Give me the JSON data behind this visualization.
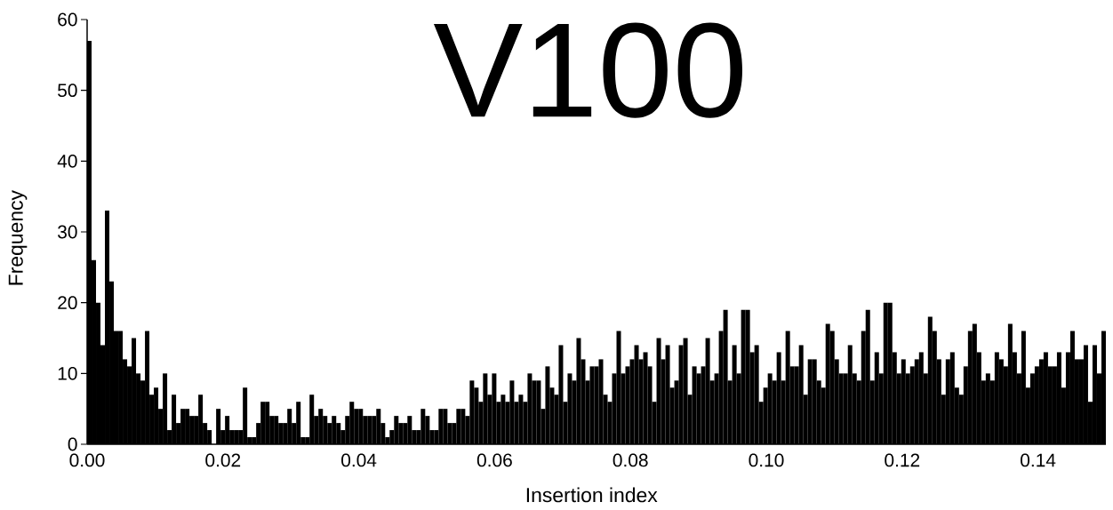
{
  "chart_data": {
    "type": "histogram",
    "title": "V100",
    "xlabel": "Insertion index",
    "ylabel": "Frequency",
    "color": "#000000",
    "bins": [
      0,
      0.000655,
      0.00131,
      0.001965,
      0.00262,
      0.003275,
      0.00393,
      0.004585,
      0.00524,
      0.005895,
      0.00655,
      0.007205,
      0.00786,
      0.008515,
      0.00917,
      0.009825,
      0.01048,
      0.011135,
      0.01179,
      0.012445,
      0.0131,
      0.013755,
      0.01441,
      0.015065,
      0.01572,
      0.016375,
      0.01703,
      0.017685,
      0.01834,
      0.018995,
      0.01965,
      0.020305,
      0.02096,
      0.021615,
      0.02227,
      0.022925,
      0.02358,
      0.024235,
      0.02489,
      0.025545,
      0.0262,
      0.026855,
      0.02751,
      0.028165,
      0.02882,
      0.029475,
      0.03013,
      0.030785,
      0.03144,
      0.032095,
      0.03275,
      0.033405,
      0.03406,
      0.034715,
      0.03537,
      0.036025,
      0.03668,
      0.037335,
      0.03799,
      0.038645,
      0.0393,
      0.039955,
      0.04061,
      0.041265,
      0.04192,
      0.042575,
      0.04323,
      0.043885,
      0.04454,
      0.045195,
      0.04585,
      0.046505,
      0.04716,
      0.047815,
      0.04847,
      0.049125,
      0.04978,
      0.050435,
      0.05109,
      0.051745,
      0.0524,
      0.053055,
      0.05371,
      0.054365,
      0.05502,
      0.055675,
      0.05633,
      0.056985,
      0.05764,
      0.058295,
      0.05895,
      0.059605,
      0.06026,
      0.060915,
      0.06157,
      0.062225,
      0.06288,
      0.063535,
      0.06419,
      0.064845,
      0.0655,
      0.066155,
      0.06681,
      0.067465,
      0.06812,
      0.068775,
      0.06943,
      0.070085,
      0.07074,
      0.071395,
      0.07205,
      0.072705,
      0.07336,
      0.074015,
      0.07467,
      0.075325,
      0.07598,
      0.076635,
      0.07729,
      0.077945,
      0.0786,
      0.079255,
      0.07991,
      0.080565,
      0.08122,
      0.081875,
      0.08253,
      0.083185,
      0.08384,
      0.084495,
      0.08515,
      0.085805,
      0.08646,
      0.087115,
      0.08777,
      0.088425,
      0.08908,
      0.089735,
      0.09039,
      0.091045,
      0.0917,
      0.092355,
      0.09301,
      0.093665,
      0.09432,
      0.094975,
      0.09563,
      0.096285,
      0.09694,
      0.097595,
      0.09825,
      0.098905,
      0.09956,
      0.100215,
      0.10087,
      0.101525,
      0.10218,
      0.102835,
      0.10349,
      0.104145,
      0.1048,
      0.105455,
      0.10611,
      0.106765,
      0.10742,
      0.108075,
      0.10873,
      0.109385,
      0.11004,
      0.110695,
      0.11135,
      0.112005,
      0.11266,
      0.113315,
      0.11397,
      0.114625,
      0.11528,
      0.115935,
      0.11659,
      0.117245,
      0.1179,
      0.118555,
      0.11921,
      0.119865,
      0.12052,
      0.121175,
      0.12183,
      0.122485,
      0.12314,
      0.123795,
      0.12445,
      0.125105,
      0.12576,
      0.126415,
      0.12707,
      0.127725,
      0.12838,
      0.129035,
      0.12969,
      0.130345,
      0.131,
      0.131655,
      0.13231,
      0.132965,
      0.13362,
      0.134275,
      0.13493,
      0.135585,
      0.13624,
      0.136895,
      0.13755,
      0.138205,
      0.13886,
      0.139515,
      0.14017,
      0.140825,
      0.14148,
      0.142135,
      0.14279,
      0.143445,
      0.1441,
      0.144755,
      0.14541,
      0.146065,
      0.14672,
      0.147375,
      0.14803,
      0.148685,
      0.14934,
      0.149995
    ],
    "values": [
      57,
      26,
      20,
      14,
      33,
      23,
      16,
      16,
      12,
      11,
      15,
      10,
      9,
      16,
      7,
      8,
      5,
      10,
      2,
      7,
      3,
      5,
      5,
      4,
      4,
      7,
      3,
      2,
      0,
      5,
      2,
      4,
      2,
      2,
      2,
      8,
      1,
      1,
      3,
      6,
      6,
      4,
      4,
      3,
      3,
      5,
      3,
      6,
      1,
      1,
      7,
      4,
      5,
      4,
      3,
      4,
      3,
      2,
      4,
      6,
      5,
      5,
      4,
      4,
      4,
      5,
      3,
      1,
      2,
      4,
      3,
      3,
      4,
      2,
      2,
      5,
      4,
      2,
      2,
      5,
      5,
      3,
      3,
      5,
      5,
      4,
      9,
      8,
      6,
      10,
      7,
      10,
      6,
      7,
      6,
      9,
      6,
      7,
      6,
      10,
      9,
      9,
      5,
      11,
      8,
      7,
      14,
      6,
      10,
      9,
      15,
      12,
      9,
      11,
      11,
      12,
      7,
      6,
      10,
      16,
      10,
      11,
      12,
      14,
      12,
      13,
      11,
      6,
      15,
      12,
      14,
      8,
      9,
      14,
      15,
      7,
      11,
      10,
      11,
      15,
      9,
      10,
      16,
      19,
      9,
      14,
      10,
      19,
      19,
      13,
      14,
      6,
      8,
      10,
      9,
      13,
      9,
      16,
      11,
      11,
      14,
      7,
      12,
      12,
      9,
      8,
      17,
      16,
      12,
      10,
      10,
      14,
      10,
      9,
      16,
      19,
      9,
      13,
      10,
      20,
      20,
      13,
      10,
      12,
      10,
      11,
      12,
      13,
      10,
      18,
      16,
      12,
      7,
      12,
      13,
      8,
      7,
      11,
      16,
      17,
      13,
      9,
      10,
      9,
      13,
      12,
      11,
      17,
      13,
      10,
      16,
      8,
      10,
      11,
      12,
      13,
      11,
      11,
      13,
      8,
      13,
      16,
      12,
      12,
      14,
      6,
      14,
      10,
      16
    ],
    "xlim": [
      0,
      0.15
    ],
    "xticks": [
      {
        "value": 0,
        "label": "0.00"
      },
      {
        "value": 0.02,
        "label": "0.02"
      },
      {
        "value": 0.04,
        "label": "0.04"
      },
      {
        "value": 0.06,
        "label": "0.06"
      },
      {
        "value": 0.08,
        "label": "0.08"
      },
      {
        "value": 0.1,
        "label": "0.10"
      },
      {
        "value": 0.12,
        "label": "0.12"
      },
      {
        "value": 0.14,
        "label": "0.14"
      }
    ],
    "ylim": [
      0,
      60
    ],
    "yticks": [
      0,
      10,
      20,
      30,
      40,
      50,
      60
    ]
  }
}
